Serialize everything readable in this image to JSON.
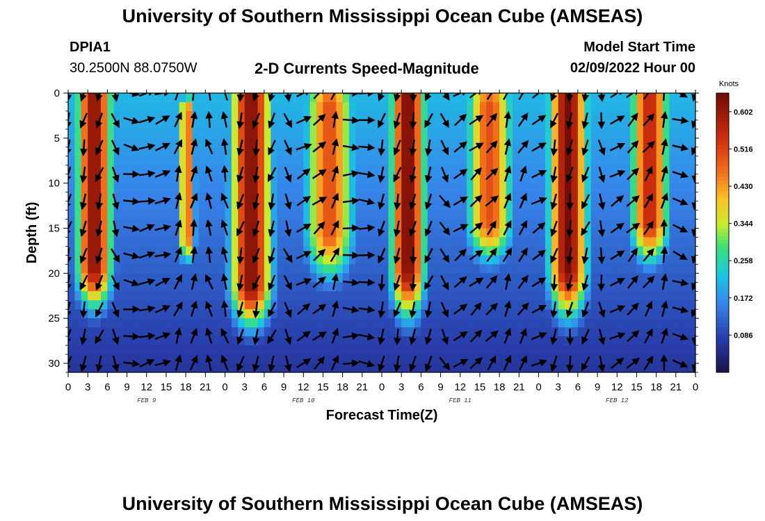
{
  "page": {
    "title": "University of Southern Mississippi Ocean Cube (AMSEAS)",
    "footer_title": "University of Southern Mississippi Ocean Cube (AMSEAS)",
    "station_id": "DPIA1",
    "station_coords": "30.2500N  88.0750W",
    "model_start_label": "Model Start Time",
    "model_start_value": "02/09/2022 Hour 00"
  },
  "chart_data": {
    "type": "heatmap",
    "title": "2-D Currents Speed-Magnitude",
    "xlabel": "Forecast Time(Z)",
    "ylabel": "Depth (ft)",
    "xlim": [
      0,
      96
    ],
    "ylim": [
      0,
      31
    ],
    "x_tick_labels": [
      "0",
      "3",
      "6",
      "9",
      "12",
      "15",
      "18",
      "21",
      "0",
      "3",
      "6",
      "9",
      "12",
      "15",
      "18",
      "21",
      "0",
      "3",
      "6",
      "9",
      "12",
      "15",
      "18",
      "21",
      "0",
      "3",
      "6",
      "9",
      "12",
      "15",
      "18",
      "21",
      "0"
    ],
    "y_ticks": [
      0,
      5,
      10,
      15,
      20,
      25,
      30
    ],
    "day_labels": [
      {
        "label": "FEB 9",
        "hour": 12
      },
      {
        "label": "FEB 10",
        "hour": 36
      },
      {
        "label": "FEB 11",
        "hour": 60
      },
      {
        "label": "FEB 12",
        "hour": 84
      }
    ],
    "colorbar": {
      "unit": "Knots",
      "min": 0.0,
      "max": 0.645,
      "tick_labels": [
        "0.602",
        "0.516",
        "0.430",
        "0.344",
        "0.258",
        "0.172",
        "0.086"
      ],
      "tick_values": [
        0.602,
        0.516,
        0.43,
        0.344,
        0.258,
        0.172,
        0.086
      ]
    },
    "high_speed_cores": [
      {
        "hour": 4,
        "width": 2.8,
        "peak": 0.62,
        "top_depth": 0,
        "bottom_depth": 19,
        "falloff": 5
      },
      {
        "hour": 18.2,
        "width": 1.3,
        "peak": 0.48,
        "top_depth": 2,
        "bottom_depth": 16,
        "falloff": 3
      },
      {
        "hour": 28,
        "width": 3.2,
        "peak": 0.63,
        "top_depth": 0,
        "bottom_depth": 21,
        "falloff": 5
      },
      {
        "hour": 40,
        "width": 3.8,
        "peak": 0.5,
        "top_depth": 1,
        "bottom_depth": 15,
        "falloff": 6
      },
      {
        "hour": 52,
        "width": 2.7,
        "peak": 0.64,
        "top_depth": 0,
        "bottom_depth": 19,
        "falloff": 6
      },
      {
        "hour": 64.5,
        "width": 3.6,
        "peak": 0.5,
        "top_depth": 1,
        "bottom_depth": 14,
        "falloff": 5
      },
      {
        "hour": 76.5,
        "width": 3.0,
        "peak": 0.64,
        "top_depth": 0,
        "bottom_depth": 19,
        "falloff": 6
      },
      {
        "hour": 89,
        "width": 3.0,
        "peak": 0.56,
        "top_depth": 0,
        "bottom_depth": 14,
        "falloff": 5
      }
    ],
    "vector_hours": [
      0,
      2.4,
      4.8,
      7.2,
      9.6,
      12,
      14.4,
      16.8,
      19.2,
      21.6,
      24,
      26.4,
      28.8,
      31.2,
      33.6,
      36,
      38.4,
      40.8,
      43.2,
      45.6,
      48,
      50.4,
      52.8,
      55.2,
      57.6,
      60,
      62.4,
      64.8,
      67.2,
      69.6,
      72,
      74.4,
      76.8,
      79.2,
      81.6,
      84,
      86.4,
      88.8,
      91.2,
      93.6,
      96
    ],
    "vector_depths": [
      0,
      3,
      6,
      9,
      12,
      15,
      18,
      21,
      24,
      27,
      30
    ],
    "vector_directions_deg": [
      195,
      195,
      200,
      160,
      100,
      75,
      70,
      20,
      15,
      345,
      345,
      195,
      195,
      200,
      160,
      60,
      50,
      20,
      90,
      95,
      195,
      195,
      190,
      200,
      150,
      55,
      50,
      40,
      20,
      30,
      60,
      195,
      190,
      200,
      170,
      60,
      45,
      35,
      10,
      110,
      195
    ]
  }
}
